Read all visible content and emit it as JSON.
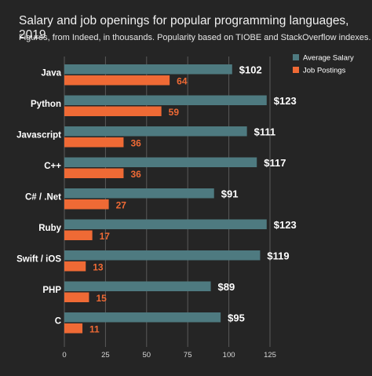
{
  "chart_data": {
    "type": "bar",
    "orientation": "horizontal",
    "title": "Salary and job openings for popular programming languages, 2019",
    "subtitle": "Figures, from Indeed, in thousands. Popularity based on TIOBE and StackOverflow indexes.",
    "categories": [
      "Java",
      "Python",
      "Javascript",
      "C++",
      "C# / .Net",
      "Ruby",
      "Swift / iOS",
      "PHP",
      "C"
    ],
    "series": [
      {
        "name": "Average Salary",
        "color": "#4e7a80",
        "values": [
          102,
          123,
          111,
          117,
          91,
          123,
          119,
          89,
          95
        ],
        "labels": [
          "$102",
          "$123",
          "$111",
          "$117",
          "$91",
          "$123",
          "$119",
          "$89",
          "$95"
        ],
        "label_color": "#ffffff"
      },
      {
        "name": "Job Postings",
        "color": "#ef6a35",
        "values": [
          64,
          59,
          36,
          36,
          27,
          17,
          13,
          15,
          11
        ],
        "labels": [
          "64",
          "59",
          "36",
          "36",
          "27",
          "17",
          "13",
          "15",
          "11"
        ],
        "label_color": "#ef6a35"
      }
    ],
    "xlim": [
      0,
      125
    ],
    "xticks": [
      "0",
      "25",
      "50",
      "75",
      "100",
      "125"
    ],
    "grid": true,
    "legend_position": "top-right",
    "colors": {
      "background": "#252525",
      "grid": "#5a5a5a",
      "text": "#ffffff"
    }
  }
}
